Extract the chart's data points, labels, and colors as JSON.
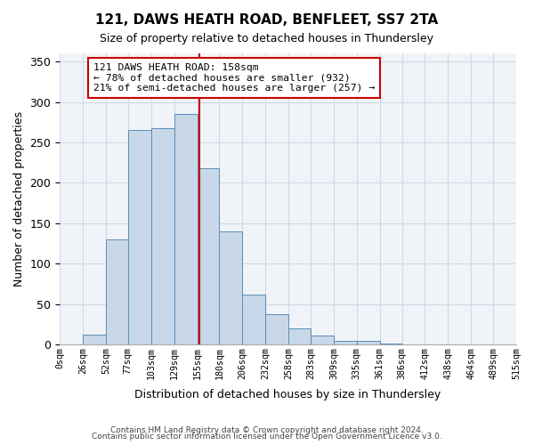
{
  "title1": "121, DAWS HEATH ROAD, BENFLEET, SS7 2TA",
  "title2": "Size of property relative to detached houses in Thundersley",
  "xlabel": "Distribution of detached houses by size in Thundersley",
  "ylabel": "Number of detached properties",
  "bin_labels": [
    "0sqm",
    "26sqm",
    "52sqm",
    "77sqm",
    "103sqm",
    "129sqm",
    "155sqm",
    "180sqm",
    "206sqm",
    "232sqm",
    "258sqm",
    "283sqm",
    "309sqm",
    "335sqm",
    "361sqm",
    "386sqm",
    "412sqm",
    "438sqm",
    "464sqm",
    "489sqm",
    "515sqm"
  ],
  "bin_edges": [
    0,
    26,
    52,
    77,
    103,
    129,
    155,
    180,
    206,
    232,
    258,
    283,
    309,
    335,
    361,
    386,
    412,
    438,
    464,
    489,
    515
  ],
  "bar_heights": [
    0,
    12,
    130,
    265,
    268,
    285,
    218,
    140,
    62,
    38,
    20,
    11,
    5,
    5,
    1,
    0,
    0,
    0,
    0,
    0
  ],
  "bar_color": "#c8d8e8",
  "bar_edge_color": "#5b8db8",
  "ref_line_x": 158,
  "ref_line_color": "#cc0000",
  "annotation_text": "121 DAWS HEATH ROAD: 158sqm\n← 78% of detached houses are smaller (932)\n21% of semi-detached houses are larger (257) →",
  "annotation_box_color": "#ffffff",
  "annotation_box_edge": "#cc0000",
  "ylim": [
    0,
    360
  ],
  "yticks": [
    0,
    50,
    100,
    150,
    200,
    250,
    300,
    350
  ],
  "grid_color": "#d0d8e8",
  "background_color": "#f0f4f8",
  "footer1": "Contains HM Land Registry data © Crown copyright and database right 2024.",
  "footer2": "Contains public sector information licensed under the Open Government Licence v3.0."
}
